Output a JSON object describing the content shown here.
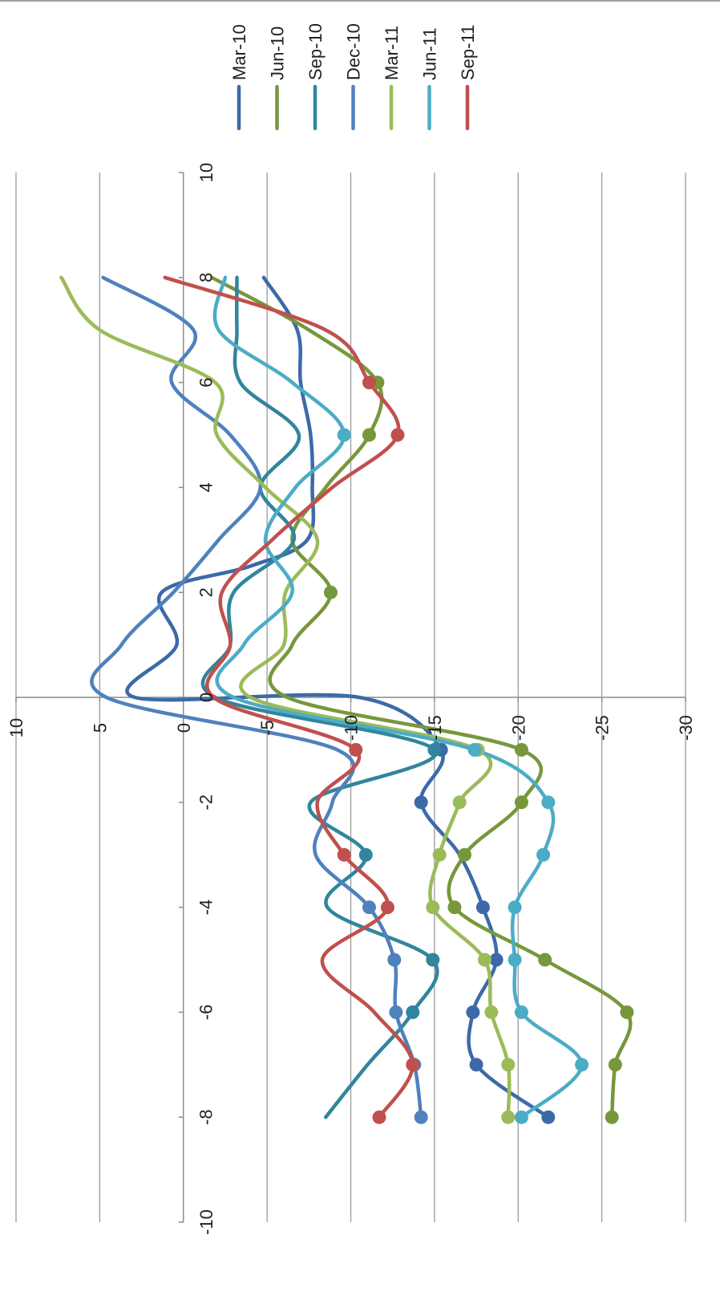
{
  "chart_data": {
    "type": "line",
    "title": "",
    "xlabel": "",
    "ylabel": "",
    "xlim": [
      -10,
      10
    ],
    "ylim": [
      -30,
      10
    ],
    "x_ticks": [
      -10,
      -8,
      -6,
      -4,
      -2,
      0,
      2,
      4,
      6,
      8,
      10
    ],
    "x_tick_labels": [
      "-10",
      "-8",
      "-6",
      "-4",
      "-2",
      "0",
      "2",
      "4",
      "6",
      "8",
      "10"
    ],
    "y_ticks": [
      10,
      5,
      0,
      -5,
      -10,
      -15,
      -20,
      -25,
      -30
    ],
    "y_tick_labels": [
      "10",
      "5",
      "0",
      "-5",
      "-10",
      "-15",
      "-20",
      "-25",
      "-30"
    ],
    "grid": true,
    "legend_position": "top",
    "orientation": "rotated 90 degrees clockwise",
    "smooth": true,
    "series": [
      {
        "name": "Mar-10",
        "color": "#3c6aa8",
        "points": [
          [
            -8,
            -21.8
          ],
          [
            -7,
            -17.5
          ],
          [
            -6,
            -17.3
          ],
          [
            -5,
            -18.7
          ],
          [
            -4,
            -17.9
          ],
          [
            -3,
            -16.5
          ],
          [
            -2,
            -14.2
          ],
          [
            -1,
            -15.4
          ],
          [
            0,
            -10.5
          ],
          [
            0,
            2.9
          ],
          [
            1,
            0.4
          ],
          [
            2,
            1.3
          ],
          [
            2.5,
            -4
          ],
          [
            3,
            -7.4
          ],
          [
            4,
            -7.7
          ],
          [
            5,
            -7.6
          ],
          [
            6,
            -7
          ],
          [
            7,
            -6.8
          ],
          [
            8,
            -4.8
          ]
        ],
        "markers": [
          [
            -8,
            -21.8
          ],
          [
            -7,
            -17.5
          ],
          [
            -6,
            -17.3
          ],
          [
            -5,
            -18.7
          ],
          [
            -4,
            -17.9
          ],
          [
            -2,
            -14.2
          ],
          [
            -1,
            -15.4
          ]
        ]
      },
      {
        "name": "Jun-10",
        "color": "#77973d",
        "points": [
          [
            -8,
            -25.6
          ],
          [
            -7,
            -25.8
          ],
          [
            -6,
            -26.5
          ],
          [
            -5,
            -21.6
          ],
          [
            -4,
            -16.2
          ],
          [
            -3,
            -16.8
          ],
          [
            -2,
            -20.2
          ],
          [
            -1,
            -20.2
          ],
          [
            0,
            -6.2
          ],
          [
            1,
            -6.5
          ],
          [
            2,
            -8.8
          ],
          [
            3,
            -6.5
          ],
          [
            4,
            -8.5
          ],
          [
            5,
            -11.1
          ],
          [
            6,
            -11.6
          ],
          [
            7,
            -7.5
          ],
          [
            8,
            -1.7
          ]
        ],
        "markers": [
          [
            -8,
            -25.6
          ],
          [
            -7,
            -25.8
          ],
          [
            -6,
            -26.5
          ],
          [
            -5,
            -21.6
          ],
          [
            -4,
            -16.2
          ],
          [
            -3,
            -16.8
          ],
          [
            -2,
            -20.2
          ],
          [
            -1,
            -20.2
          ],
          [
            2,
            -8.8
          ],
          [
            5,
            -11.1
          ],
          [
            6,
            -11.6
          ]
        ]
      },
      {
        "name": "Sep-10",
        "color": "#31859c",
        "points": [
          [
            -8,
            -8.5
          ],
          [
            -7,
            -11
          ],
          [
            -6,
            -13.7
          ],
          [
            -5,
            -14.9
          ],
          [
            -4,
            -8.6
          ],
          [
            -3,
            -10.9
          ],
          [
            -2,
            -7.6
          ],
          [
            -1,
            -15
          ],
          [
            0,
            -1.9
          ],
          [
            1,
            -2.8
          ],
          [
            2,
            -3
          ],
          [
            3,
            -6.6
          ],
          [
            4,
            -4.6
          ],
          [
            5,
            -6.9
          ],
          [
            6,
            -3.4
          ],
          [
            7,
            -3.2
          ],
          [
            8,
            -3.2
          ]
        ],
        "markers": [
          [
            -6,
            -13.7
          ],
          [
            -5,
            -14.9
          ],
          [
            -3,
            -10.9
          ],
          [
            -1,
            -15
          ]
        ]
      },
      {
        "name": "Dec-10",
        "color": "#4f81bd",
        "points": [
          [
            -8,
            -14.2
          ],
          [
            -7,
            -13.8
          ],
          [
            -6,
            -12.7
          ],
          [
            -5,
            -12.6
          ],
          [
            -4,
            -11.1
          ],
          [
            -3,
            -7.9
          ],
          [
            -2,
            -8.9
          ],
          [
            -1,
            -9.2
          ],
          [
            0,
            4.6
          ],
          [
            1,
            3.7
          ],
          [
            2,
            0.6
          ],
          [
            3,
            -2.1
          ],
          [
            4,
            -4.6
          ],
          [
            5,
            -2.8
          ],
          [
            6,
            0.7
          ],
          [
            7,
            -0.6
          ],
          [
            8,
            4.8
          ]
        ],
        "markers": [
          [
            -8,
            -14.2
          ],
          [
            -7,
            -13.8
          ],
          [
            -6,
            -12.7
          ],
          [
            -5,
            -12.6
          ],
          [
            -4,
            -11.1
          ]
        ]
      },
      {
        "name": "Mar-11",
        "color": "#9bbb59",
        "points": [
          [
            -8,
            -19.4
          ],
          [
            -7,
            -19.4
          ],
          [
            -6,
            -18.4
          ],
          [
            -5,
            -18
          ],
          [
            -4,
            -14.9
          ],
          [
            -3,
            -15.3
          ],
          [
            -2,
            -16.5
          ],
          [
            -1,
            -17.6
          ],
          [
            0,
            -4
          ],
          [
            1,
            -6
          ],
          [
            2,
            -6.1
          ],
          [
            3,
            -8
          ],
          [
            4,
            -4.9
          ],
          [
            5,
            -2
          ],
          [
            6,
            -1.9
          ],
          [
            7,
            5
          ],
          [
            8,
            7.3
          ]
        ],
        "markers": [
          [
            -8,
            -19.4
          ],
          [
            -7,
            -19.4
          ],
          [
            -6,
            -18.4
          ],
          [
            -5,
            -18
          ],
          [
            -4,
            -14.9
          ],
          [
            -3,
            -15.3
          ],
          [
            -2,
            -16.5
          ],
          [
            -1,
            -17.6
          ]
        ]
      },
      {
        "name": "Jun-11",
        "color": "#4bacc6",
        "points": [
          [
            -8,
            -20.2
          ],
          [
            -7,
            -23.8
          ],
          [
            -6,
            -20.2
          ],
          [
            -5,
            -19.8
          ],
          [
            -4,
            -19.8
          ],
          [
            -3,
            -21.5
          ],
          [
            -2,
            -21.8
          ],
          [
            -1,
            -17.4
          ],
          [
            0,
            -3
          ],
          [
            1,
            -3.6
          ],
          [
            2,
            -6.5
          ],
          [
            3,
            -4.9
          ],
          [
            4,
            -6.7
          ],
          [
            5,
            -9.6
          ],
          [
            6,
            -6.5
          ],
          [
            7,
            -2.1
          ],
          [
            8,
            -2.5
          ]
        ],
        "markers": [
          [
            -8,
            -20.2
          ],
          [
            -7,
            -23.8
          ],
          [
            -6,
            -20.2
          ],
          [
            -5,
            -19.8
          ],
          [
            -4,
            -19.8
          ],
          [
            -3,
            -21.5
          ],
          [
            -2,
            -21.8
          ],
          [
            -1,
            -17.4
          ],
          [
            5,
            -9.6
          ]
        ]
      },
      {
        "name": "Sep-11",
        "color": "#c0504d",
        "points": [
          [
            -8,
            -11.7
          ],
          [
            -7,
            -13.7
          ],
          [
            -6,
            -11.4
          ],
          [
            -5,
            -8.3
          ],
          [
            -4,
            -12.2
          ],
          [
            -3,
            -9.6
          ],
          [
            -2,
            -8
          ],
          [
            -1,
            -10.3
          ],
          [
            0,
            -1.8
          ],
          [
            1,
            -2.8
          ],
          [
            2,
            -2.3
          ],
          [
            3,
            -5.3
          ],
          [
            4,
            -8.9
          ],
          [
            5,
            -12.8
          ],
          [
            6,
            -11.1
          ],
          [
            7,
            -8.5
          ],
          [
            8,
            1.1
          ]
        ],
        "markers": [
          [
            -8,
            -11.7
          ],
          [
            -7,
            -13.7
          ],
          [
            -4,
            -12.2
          ],
          [
            -3,
            -9.6
          ],
          [
            -1,
            -10.3
          ],
          [
            5,
            -12.8
          ],
          [
            6,
            -11.1
          ]
        ]
      }
    ]
  }
}
